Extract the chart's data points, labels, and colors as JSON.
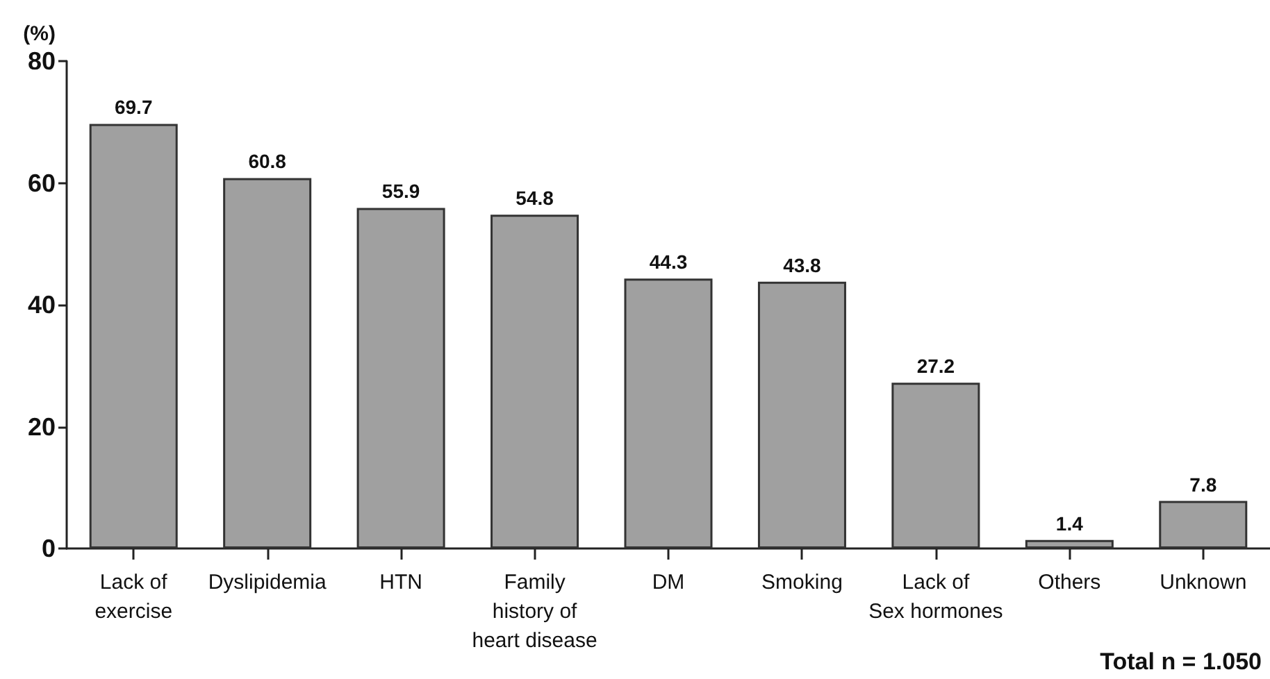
{
  "chart_data": {
    "type": "bar",
    "ylabel": "(%)",
    "categories": [
      "Lack of\nexercise",
      "Dyslipidemia",
      "HTN",
      "Family\nhistory of\nheart disease",
      "DM",
      "Smoking",
      "Lack of\nSex hormones",
      "Others",
      "Unknown"
    ],
    "values": [
      69.7,
      60.8,
      55.9,
      54.8,
      44.3,
      43.8,
      27.2,
      1.4,
      7.8
    ],
    "color": "#a0a0a0",
    "ylim": [
      0,
      80
    ],
    "yticks": [
      0,
      20,
      40,
      60,
      80
    ],
    "data_labels": true,
    "grid": false,
    "annotations": [
      "Total n = 1.050"
    ]
  }
}
